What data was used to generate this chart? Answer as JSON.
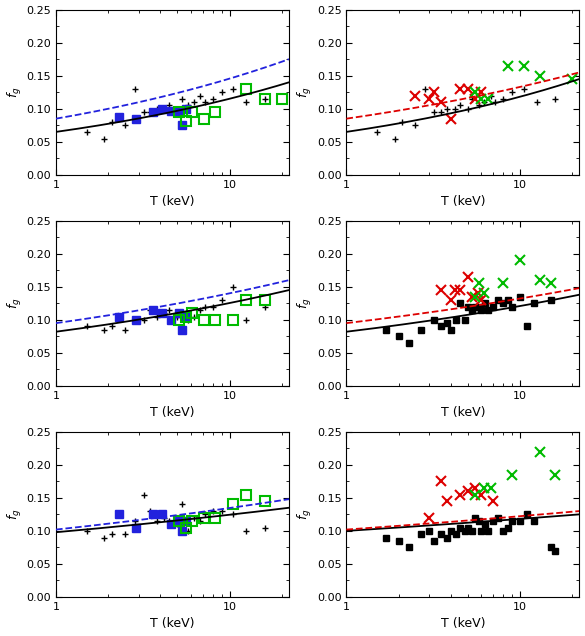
{
  "panels": [
    {
      "row": 0,
      "col": 0,
      "plus_data": [
        [
          1.5,
          0.065
        ],
        [
          1.9,
          0.055
        ],
        [
          2.1,
          0.08
        ],
        [
          2.5,
          0.075
        ],
        [
          2.85,
          0.13
        ],
        [
          3.2,
          0.095
        ],
        [
          3.5,
          0.095
        ],
        [
          3.8,
          0.1
        ],
        [
          4.2,
          0.1
        ],
        [
          4.5,
          0.105
        ],
        [
          5.0,
          0.1
        ],
        [
          5.3,
          0.115
        ],
        [
          5.8,
          0.105
        ],
        [
          6.2,
          0.11
        ],
        [
          6.8,
          0.12
        ],
        [
          7.2,
          0.11
        ],
        [
          8.0,
          0.115
        ],
        [
          9.0,
          0.125
        ],
        [
          10.5,
          0.13
        ],
        [
          12.5,
          0.11
        ],
        [
          16.0,
          0.115
        ]
      ],
      "blue_sq_data": [
        [
          2.3,
          0.088
        ],
        [
          2.9,
          0.085
        ],
        [
          3.6,
          0.095
        ],
        [
          4.1,
          0.1
        ],
        [
          4.6,
          0.097
        ],
        [
          5.1,
          0.095
        ],
        [
          5.3,
          0.075
        ],
        [
          5.6,
          0.1
        ]
      ],
      "green_sq_data": [
        [
          5.1,
          0.095
        ],
        [
          5.6,
          0.082
        ],
        [
          6.1,
          0.095
        ],
        [
          7.1,
          0.085
        ],
        [
          8.2,
          0.095
        ],
        [
          12.5,
          0.13
        ],
        [
          16.0,
          0.115
        ],
        [
          20.0,
          0.115
        ]
      ],
      "black_line_y": [
        0.065,
        0.14
      ],
      "blue_dashed_line_y": [
        0.085,
        0.175
      ]
    },
    {
      "row": 0,
      "col": 1,
      "plus_data": [
        [
          1.5,
          0.065
        ],
        [
          1.9,
          0.055
        ],
        [
          2.1,
          0.08
        ],
        [
          2.5,
          0.075
        ],
        [
          2.85,
          0.13
        ],
        [
          3.2,
          0.095
        ],
        [
          3.5,
          0.095
        ],
        [
          3.8,
          0.1
        ],
        [
          4.2,
          0.1
        ],
        [
          4.5,
          0.105
        ],
        [
          5.0,
          0.1
        ],
        [
          5.3,
          0.115
        ],
        [
          5.8,
          0.105
        ],
        [
          6.2,
          0.11
        ],
        [
          6.8,
          0.12
        ],
        [
          7.2,
          0.11
        ],
        [
          8.0,
          0.115
        ],
        [
          9.0,
          0.125
        ],
        [
          10.5,
          0.13
        ],
        [
          12.5,
          0.11
        ],
        [
          16.0,
          0.115
        ]
      ],
      "black_sq_data": [],
      "red_x_data": [
        [
          2.5,
          0.12
        ],
        [
          3.0,
          0.115
        ],
        [
          3.2,
          0.125
        ],
        [
          3.5,
          0.11
        ],
        [
          4.0,
          0.085
        ],
        [
          4.5,
          0.13
        ],
        [
          5.0,
          0.13
        ],
        [
          5.5,
          0.115
        ],
        [
          6.0,
          0.125
        ]
      ],
      "green_x_data": [
        [
          5.5,
          0.125
        ],
        [
          6.0,
          0.115
        ],
        [
          6.5,
          0.115
        ],
        [
          8.5,
          0.165
        ],
        [
          10.5,
          0.165
        ],
        [
          13.0,
          0.15
        ],
        [
          20.0,
          0.145
        ]
      ],
      "black_line_y": [
        0.065,
        0.145
      ],
      "red_dashed_line_y": [
        0.085,
        0.155
      ]
    },
    {
      "row": 1,
      "col": 0,
      "plus_data": [
        [
          1.5,
          0.09
        ],
        [
          1.9,
          0.085
        ],
        [
          2.1,
          0.09
        ],
        [
          2.5,
          0.085
        ],
        [
          2.85,
          0.1
        ],
        [
          3.2,
          0.1
        ],
        [
          3.5,
          0.115
        ],
        [
          3.8,
          0.105
        ],
        [
          4.2,
          0.11
        ],
        [
          4.5,
          0.115
        ],
        [
          5.0,
          0.105
        ],
        [
          5.3,
          0.11
        ],
        [
          5.8,
          0.1
        ],
        [
          6.2,
          0.105
        ],
        [
          6.8,
          0.115
        ],
        [
          7.2,
          0.12
        ],
        [
          8.0,
          0.12
        ],
        [
          9.0,
          0.13
        ],
        [
          10.5,
          0.15
        ],
        [
          12.5,
          0.1
        ],
        [
          16.0,
          0.12
        ]
      ],
      "blue_sq_data": [
        [
          2.3,
          0.105
        ],
        [
          2.9,
          0.1
        ],
        [
          3.6,
          0.115
        ],
        [
          4.1,
          0.11
        ],
        [
          4.6,
          0.1
        ],
        [
          5.1,
          0.11
        ],
        [
          5.3,
          0.085
        ],
        [
          5.6,
          0.105
        ]
      ],
      "green_sq_data": [
        [
          5.1,
          0.1
        ],
        [
          5.6,
          0.105
        ],
        [
          6.1,
          0.11
        ],
        [
          7.1,
          0.1
        ],
        [
          8.2,
          0.1
        ],
        [
          10.5,
          0.1
        ],
        [
          12.5,
          0.13
        ],
        [
          16.0,
          0.13
        ]
      ],
      "black_line_y": [
        0.082,
        0.145
      ],
      "blue_dashed_line_y": [
        0.095,
        0.16
      ]
    },
    {
      "row": 1,
      "col": 1,
      "black_sq_data": [
        [
          1.7,
          0.085
        ],
        [
          2.0,
          0.075
        ],
        [
          2.3,
          0.065
        ],
        [
          2.7,
          0.085
        ],
        [
          3.2,
          0.1
        ],
        [
          3.5,
          0.09
        ],
        [
          3.8,
          0.095
        ],
        [
          4.0,
          0.085
        ],
        [
          4.3,
          0.1
        ],
        [
          4.5,
          0.125
        ],
        [
          4.8,
          0.1
        ],
        [
          5.0,
          0.12
        ],
        [
          5.3,
          0.115
        ],
        [
          5.5,
          0.12
        ],
        [
          5.8,
          0.12
        ],
        [
          6.0,
          0.115
        ],
        [
          6.3,
          0.125
        ],
        [
          6.5,
          0.115
        ],
        [
          7.0,
          0.12
        ],
        [
          7.5,
          0.13
        ],
        [
          8.0,
          0.125
        ],
        [
          8.5,
          0.13
        ],
        [
          9.0,
          0.12
        ],
        [
          10.0,
          0.135
        ],
        [
          11.0,
          0.09
        ],
        [
          12.0,
          0.125
        ],
        [
          15.0,
          0.13
        ]
      ],
      "red_x_data": [
        [
          3.5,
          0.145
        ],
        [
          4.0,
          0.13
        ],
        [
          4.2,
          0.145
        ],
        [
          4.5,
          0.145
        ],
        [
          5.0,
          0.165
        ],
        [
          5.3,
          0.135
        ],
        [
          5.7,
          0.14
        ],
        [
          6.0,
          0.13
        ]
      ],
      "green_x_data": [
        [
          5.5,
          0.135
        ],
        [
          5.8,
          0.155
        ],
        [
          6.2,
          0.14
        ],
        [
          8.0,
          0.155
        ],
        [
          10.0,
          0.19
        ],
        [
          13.0,
          0.16
        ],
        [
          15.0,
          0.155
        ]
      ],
      "black_line_y": [
        0.082,
        0.138
      ],
      "red_dashed_line_y": [
        0.095,
        0.148
      ]
    },
    {
      "row": 2,
      "col": 0,
      "plus_data": [
        [
          1.5,
          0.1
        ],
        [
          1.9,
          0.09
        ],
        [
          2.1,
          0.095
        ],
        [
          2.5,
          0.095
        ],
        [
          2.85,
          0.115
        ],
        [
          3.2,
          0.155
        ],
        [
          3.5,
          0.13
        ],
        [
          3.8,
          0.115
        ],
        [
          4.2,
          0.12
        ],
        [
          4.5,
          0.115
        ],
        [
          5.0,
          0.11
        ],
        [
          5.3,
          0.14
        ],
        [
          5.8,
          0.1
        ],
        [
          6.2,
          0.12
        ],
        [
          6.8,
          0.115
        ],
        [
          7.2,
          0.125
        ],
        [
          8.0,
          0.13
        ],
        [
          9.0,
          0.13
        ],
        [
          10.5,
          0.125
        ],
        [
          12.5,
          0.1
        ],
        [
          16.0,
          0.105
        ]
      ],
      "blue_sq_data": [
        [
          2.3,
          0.125
        ],
        [
          2.9,
          0.105
        ],
        [
          3.6,
          0.125
        ],
        [
          4.1,
          0.125
        ],
        [
          4.6,
          0.11
        ],
        [
          5.1,
          0.115
        ],
        [
          5.3,
          0.1
        ],
        [
          5.6,
          0.115
        ]
      ],
      "green_sq_data": [
        [
          5.1,
          0.115
        ],
        [
          5.6,
          0.105
        ],
        [
          6.1,
          0.115
        ],
        [
          7.1,
          0.12
        ],
        [
          8.2,
          0.12
        ],
        [
          10.5,
          0.14
        ],
        [
          12.5,
          0.155
        ],
        [
          16.0,
          0.145
        ]
      ],
      "black_line_y": [
        0.098,
        0.135
      ],
      "blue_dashed_line_y": [
        0.102,
        0.148
      ]
    },
    {
      "row": 2,
      "col": 1,
      "black_sq_data": [
        [
          1.7,
          0.09
        ],
        [
          2.0,
          0.085
        ],
        [
          2.3,
          0.075
        ],
        [
          2.7,
          0.095
        ],
        [
          3.0,
          0.1
        ],
        [
          3.2,
          0.085
        ],
        [
          3.5,
          0.095
        ],
        [
          3.8,
          0.09
        ],
        [
          4.0,
          0.1
        ],
        [
          4.3,
          0.095
        ],
        [
          4.5,
          0.105
        ],
        [
          4.8,
          0.1
        ],
        [
          5.0,
          0.105
        ],
        [
          5.3,
          0.1
        ],
        [
          5.5,
          0.12
        ],
        [
          5.8,
          0.115
        ],
        [
          6.0,
          0.1
        ],
        [
          6.3,
          0.11
        ],
        [
          6.5,
          0.1
        ],
        [
          7.0,
          0.115
        ],
        [
          7.5,
          0.12
        ],
        [
          8.0,
          0.1
        ],
        [
          8.5,
          0.105
        ],
        [
          9.0,
          0.115
        ],
        [
          10.0,
          0.115
        ],
        [
          11.0,
          0.125
        ],
        [
          12.0,
          0.115
        ],
        [
          15.0,
          0.075
        ],
        [
          16.0,
          0.07
        ]
      ],
      "red_x_data": [
        [
          3.0,
          0.12
        ],
        [
          3.5,
          0.175
        ],
        [
          3.8,
          0.145
        ],
        [
          4.5,
          0.155
        ],
        [
          5.0,
          0.16
        ],
        [
          5.5,
          0.165
        ],
        [
          6.0,
          0.155
        ],
        [
          7.0,
          0.145
        ]
      ],
      "green_x_data": [
        [
          5.5,
          0.155
        ],
        [
          6.2,
          0.165
        ],
        [
          6.8,
          0.165
        ],
        [
          9.0,
          0.185
        ],
        [
          13.0,
          0.22
        ],
        [
          16.0,
          0.185
        ]
      ],
      "black_line_y": [
        0.1,
        0.125
      ],
      "red_dashed_line_y": [
        0.102,
        0.13
      ]
    }
  ],
  "xlim": [
    1.0,
    22.0
  ],
  "ylim": [
    0.0,
    0.25
  ],
  "yticks": [
    0.0,
    0.05,
    0.1,
    0.15,
    0.2,
    0.25
  ],
  "xlabel": "T (keV)",
  "bg_color": "#ffffff",
  "blue_color": "#2222dd",
  "green_color": "#00bb00",
  "red_color": "#dd0000",
  "black_color": "#000000"
}
